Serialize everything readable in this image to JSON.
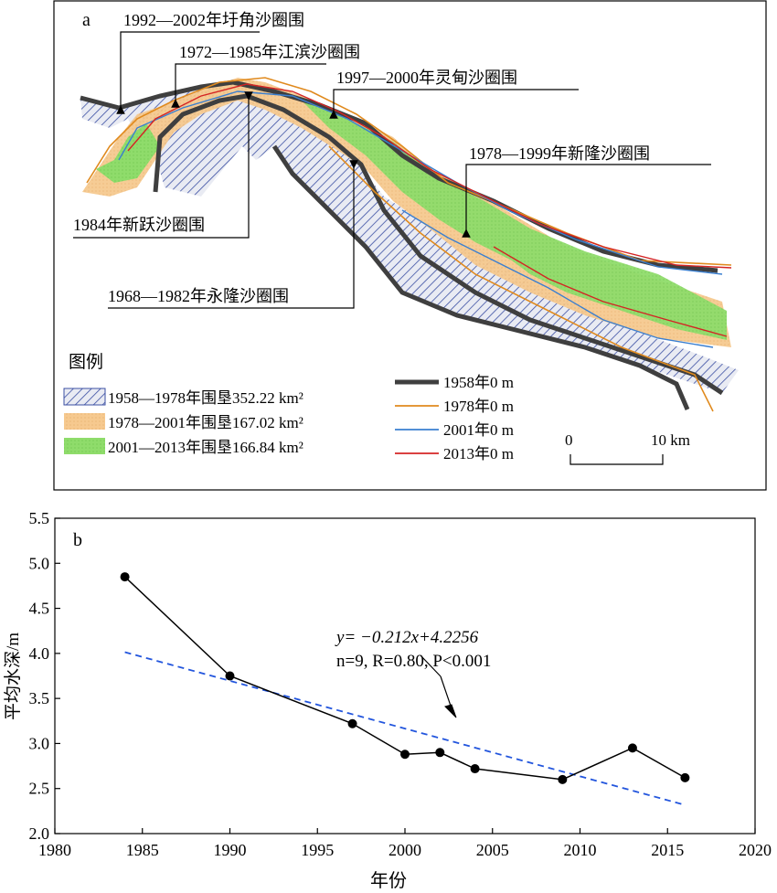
{
  "map_panel": {
    "panel_label": "a",
    "callouts": [
      "1992—2002年圩角沙圈围",
      "1972—1985年江滨沙圈围",
      "1997—2000年灵甸沙圈围",
      "1978—1999年新隆沙圈围",
      "1984年新跃沙圈围",
      "1968—1982年永隆沙圈围"
    ],
    "legend_title": "图例",
    "area_legend": [
      {
        "label": "1958—1978年围垦352.22 km²",
        "pattern": "hatch",
        "color": "#3b4fa3"
      },
      {
        "label": "1978—2001年围垦167.02 km²",
        "pattern": "fill",
        "color": "#f6c98f"
      },
      {
        "label": "2001—2013年围垦166.84 km²",
        "pattern": "fill",
        "color": "#8fdc6b"
      }
    ],
    "line_legend": [
      {
        "label": "1958年0 m",
        "color": "#3f3f3f"
      },
      {
        "label": "1978年0 m",
        "color": "#e08a1e"
      },
      {
        "label": "2001年0 m",
        "color": "#3a7fd0"
      },
      {
        "label": "2013年0 m",
        "color": "#d42424"
      }
    ],
    "scale_bar": {
      "start": "0",
      "end": "10 km"
    }
  },
  "chart_data": {
    "type": "line",
    "panel_label": "b",
    "x": [
      1984,
      1990,
      1997,
      2000,
      2002,
      2004,
      2009,
      2013,
      2016
    ],
    "series": [
      {
        "values": [
          4.85,
          3.75,
          3.22,
          2.88,
          2.9,
          2.72,
          2.6,
          2.95,
          2.62
        ],
        "style": "solid-black-markers"
      }
    ],
    "fit_line": {
      "slope": -0.212,
      "intercept": 4.2256,
      "index_start": 1,
      "index_end": 9,
      "style": "dashed-blue",
      "color": "#2255dd"
    },
    "annotation": {
      "line1": "y= −0.212x+4.2256",
      "line2": "n=9, R=0.80, P<0.001"
    },
    "xlabel": "年份",
    "ylabel": "平均水深/m",
    "xlim": [
      1980,
      2020
    ],
    "ylim": [
      2.0,
      5.5
    ],
    "xticks": [
      "1980",
      "1985",
      "1990",
      "1995",
      "2000",
      "2005",
      "2010",
      "2015",
      "2020"
    ],
    "yticks": [
      "2.0",
      "2.5",
      "3.0",
      "3.5",
      "4.0",
      "4.5",
      "5.0",
      "5.5"
    ]
  }
}
